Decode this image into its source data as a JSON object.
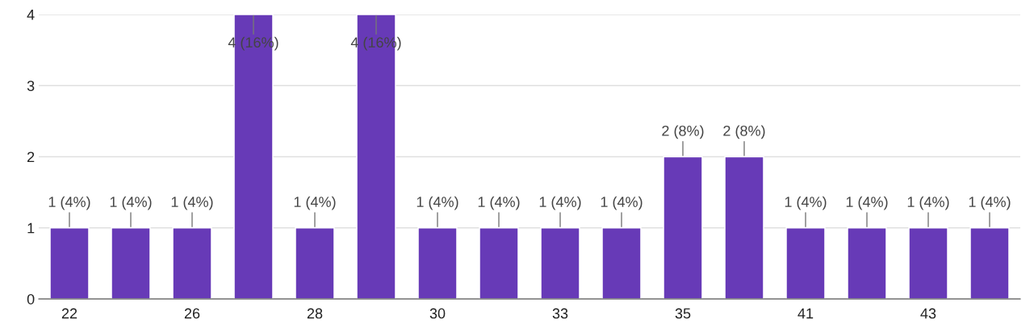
{
  "chart_data": {
    "type": "bar",
    "categories": [
      "22",
      null,
      "26",
      null,
      "28",
      null,
      "30",
      null,
      "33",
      null,
      "35",
      null,
      "41",
      null,
      "43",
      null
    ],
    "values": [
      1,
      1,
      1,
      4,
      1,
      4,
      1,
      1,
      1,
      1,
      2,
      2,
      1,
      1,
      1,
      1
    ],
    "value_labels": [
      "1 (4%)",
      "1 (4%)",
      "1 (4%)",
      "4 (16%)",
      "1 (4%)",
      "4 (16%)",
      "1 (4%)",
      "1 (4%)",
      "1 (4%)",
      "1 (4%)",
      "2 (8%)",
      "2 (8%)",
      "1 (4%)",
      "1 (4%)",
      "1 (4%)",
      "1 (4%)"
    ],
    "color": "#673ab7",
    "ylim": [
      0,
      4
    ],
    "yticks": [
      0,
      1,
      2,
      3,
      4
    ],
    "grid": "y",
    "legend": false
  }
}
